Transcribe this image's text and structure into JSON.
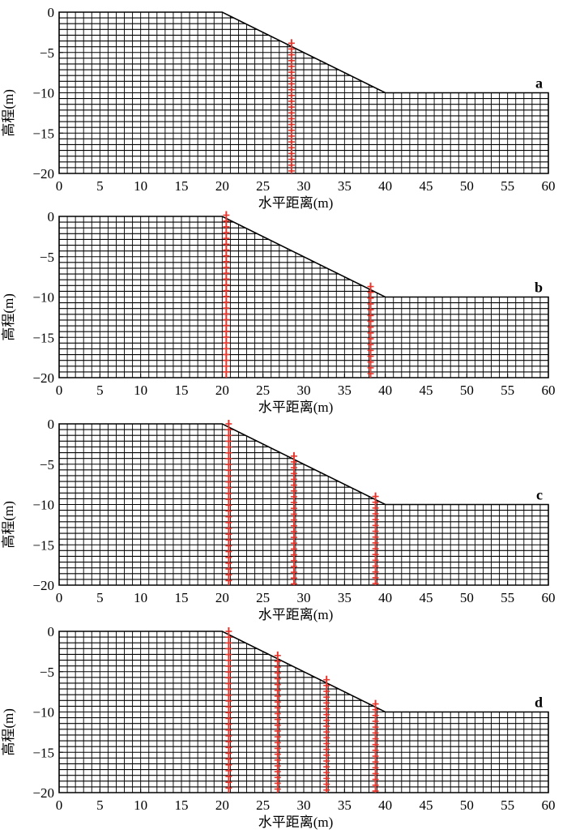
{
  "panels": [
    {
      "letter": "a",
      "x_label": "水平距离(m)",
      "y_label": "高程(m)",
      "reinforcement_x": [
        28.5
      ]
    },
    {
      "letter": "b",
      "x_label": "水平距离(m)",
      "y_label": "高程(m)",
      "reinforcement_x": [
        20.5,
        38.2
      ]
    },
    {
      "letter": "c",
      "x_label": "水平距离(m)",
      "y_label": "高程(m)",
      "reinforcement_x": [
        20.8,
        28.8,
        38.8
      ]
    },
    {
      "letter": "d",
      "x_label": "水平距离(m)",
      "y_label": "高程(m)",
      "reinforcement_x": [
        20.8,
        26.8,
        32.8,
        38.8
      ]
    }
  ],
  "axes": {
    "x_ticks": [
      0,
      5,
      10,
      15,
      20,
      25,
      30,
      35,
      40,
      45,
      50,
      55,
      60
    ],
    "y_ticks": [
      0,
      -5,
      -10,
      -15,
      -20
    ],
    "x_tick_labels": [
      "0",
      "5",
      "10",
      "15",
      "20",
      "25",
      "30",
      "35",
      "40",
      "45",
      "50",
      "55",
      "60"
    ],
    "y_tick_labels": [
      "0",
      "−5",
      "−10",
      "−15",
      "−20"
    ],
    "xlim": [
      0,
      60
    ],
    "ylim": [
      -20,
      0
    ]
  },
  "slope": {
    "crest_x": 20,
    "toe_x": 40,
    "top_elevation": 0,
    "toe_elevation": -10,
    "model_right_x": 60,
    "bottom_elevation": -20
  },
  "colors": {
    "mesh": "#000000",
    "reinforcement": "#e8362d"
  }
}
